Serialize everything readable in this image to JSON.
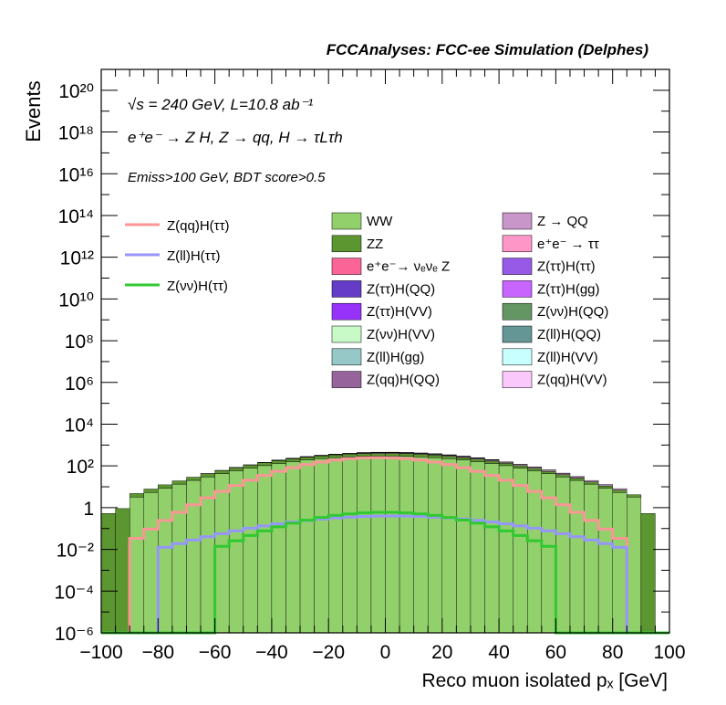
{
  "header": {
    "title": "FCCAnalyses: FCC-ee Simulation (Delphes)"
  },
  "annotations": {
    "energy": "√s = 240 GeV, L=10.8 ab⁻¹",
    "process": "e⁺e⁻ → Z H, Z → qq, H → τLτh",
    "selection": "Emiss>100 GeV, BDT score>0.5"
  },
  "chart_data": {
    "type": "histogram",
    "title": "FCCAnalyses: FCC-ee Simulation (Delphes)",
    "xlabel": "Reco muon isolated pₓ [GeV]",
    "ylabel": "Events",
    "xlim": [
      -100,
      100
    ],
    "ylim": [
      1e-06,
      1e+21
    ],
    "log_y": true,
    "bin_width": 5,
    "x_ticks": [
      "−100",
      "−80",
      "−60",
      "−40",
      "−20",
      "0",
      "20",
      "40",
      "60",
      "80",
      "100"
    ],
    "y_ticks": [
      "10⁻⁶",
      "10⁻⁴",
      "10⁻²",
      "1",
      "10²",
      "10⁴",
      "10⁶",
      "10⁸",
      "10¹⁰",
      "10¹²",
      "10¹⁴",
      "10¹⁶",
      "10¹⁸",
      "10²⁰"
    ],
    "stacked_backgrounds": [
      {
        "name": "WW",
        "color": "#91d06a",
        "range": [
          -90,
          90
        ],
        "peak": 300,
        "edge": 2.5
      },
      {
        "name": "ZZ",
        "color": "#5c9630",
        "range": [
          -100,
          95
        ],
        "peak": 100,
        "edge": 0.4
      },
      {
        "name": "Z → QQ",
        "color": "#c896c8",
        "range": [
          -65,
          85
        ],
        "peak": 30,
        "edge": 1
      },
      {
        "name": "e⁺e⁻ → ττ",
        "color": "#ff96c8",
        "range": [
          -60,
          70
        ],
        "peak": 20,
        "edge": 0.5
      },
      {
        "name": "Z(ττ)H(ττ)",
        "color": "#965ae6",
        "range": [
          -60,
          70
        ],
        "peak": 10,
        "edge": 0.3
      },
      {
        "name": "Z(ττ)H(QQ)",
        "color": "#643cc8",
        "range": [
          -60,
          70
        ],
        "peak": 8,
        "edge": 0.2
      },
      {
        "name": "Z(ττ)H(gg)",
        "color": "#c864ff",
        "range": [
          -60,
          70
        ],
        "peak": 4,
        "edge": 0.2
      },
      {
        "name": "Z(ττ)H(VV)",
        "color": "#9632fa",
        "range": [
          -60,
          70
        ],
        "peak": 3,
        "edge": 0.2
      },
      {
        "name": "Z(νν)H(QQ)",
        "color": "#649664",
        "range": [
          -60,
          70
        ],
        "peak": 2,
        "edge": 0.2
      },
      {
        "name": "Z(νν)H(VV)",
        "color": "#c8fac8",
        "range": [
          -60,
          70
        ],
        "peak": 1,
        "edge": 0.1
      },
      {
        "name": "Z(ll)H(QQ)",
        "color": "#649696",
        "range": [
          -75,
          80
        ],
        "peak": 0.8,
        "edge": 0.1
      },
      {
        "name": "Z(ll)H(gg)",
        "color": "#96c8c8",
        "range": [
          -75,
          80
        ],
        "peak": 0.5,
        "edge": 0.08
      },
      {
        "name": "Z(ll)H(VV)",
        "color": "#c8ffff",
        "range": [
          -80,
          80
        ],
        "peak": 0.05,
        "edge": 0.01
      },
      {
        "name": "Z(qq)H(QQ)",
        "color": "#96649b",
        "range": [
          -60,
          70
        ],
        "peak": 0.3,
        "edge": 0.05
      },
      {
        "name": "Z(qq)H(VV)",
        "color": "#fac8fa",
        "range": [
          -60,
          70
        ],
        "peak": 0.2,
        "edge": 0.05
      },
      {
        "name": "e⁺e⁻→ νₑνₑ Z",
        "color": "#fa6496",
        "range": [
          -30,
          40
        ],
        "peak": 0.15,
        "edge": 0.05
      }
    ],
    "signal_lines": [
      {
        "name": "Z(qq)H(ττ)",
        "color": "#fa9696",
        "range": [
          -90,
          85
        ],
        "peak": 250,
        "edge": 0.02
      },
      {
        "name": "Z(ll)H(ττ)",
        "color": "#9696fa",
        "range": [
          -80,
          85
        ],
        "peak": 0.4,
        "edge": 0.01
      },
      {
        "name": "Z(νν)H(ττ)",
        "color": "#32c832",
        "range": [
          -60,
          60
        ],
        "peak": 0.6,
        "edge": 0.01
      }
    ]
  }
}
